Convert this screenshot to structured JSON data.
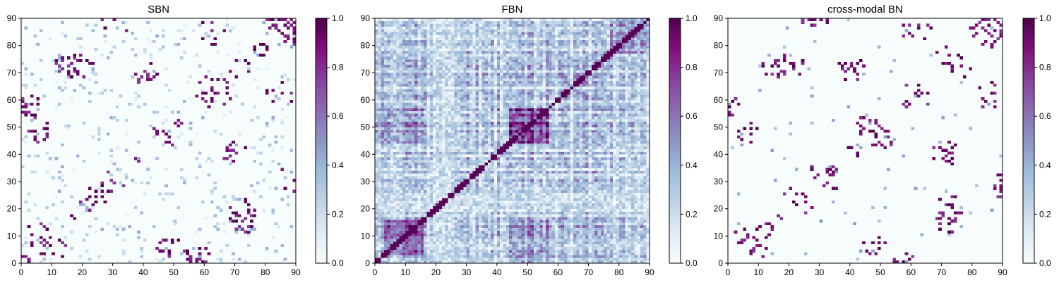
{
  "colormap": {
    "name": "BuPu",
    "stops": [
      "#f7fcfd",
      "#e0ecf4",
      "#bfd3e6",
      "#9ebcda",
      "#8c96c6",
      "#8c6bb1",
      "#88419d",
      "#810f7c",
      "#4d004b"
    ]
  },
  "colorbar_ticks": [
    "0.0",
    "0.2",
    "0.4",
    "0.6",
    "0.8",
    "1.0"
  ],
  "chart_data": [
    {
      "type": "heatmap",
      "title": "SBN",
      "xlim": [
        0,
        90
      ],
      "ylim": [
        0,
        90
      ],
      "xticks": [
        "0",
        "10",
        "20",
        "30",
        "40",
        "50",
        "60",
        "70",
        "80",
        "90"
      ],
      "yticks": [
        "0",
        "10",
        "20",
        "30",
        "40",
        "50",
        "60",
        "70",
        "80",
        "90"
      ],
      "vmin": 0.0,
      "vmax": 1.0,
      "matrix_size": [
        90,
        90
      ],
      "description": "sparse structural brain network connectivity; mostly near 0 with scattered strong entries near diagonal bands"
    },
    {
      "type": "heatmap",
      "title": "FBN",
      "xlim": [
        0,
        90
      ],
      "ylim": [
        0,
        90
      ],
      "xticks": [
        "0",
        "10",
        "20",
        "30",
        "40",
        "50",
        "60",
        "70",
        "80",
        "90"
      ],
      "yticks": [
        "0",
        "10",
        "20",
        "30",
        "40",
        "50",
        "60",
        "70",
        "80",
        "90"
      ],
      "vmin": 0.0,
      "vmax": 1.0,
      "matrix_size": [
        90,
        90
      ],
      "description": "dense functional brain network; widespread moderate values with strong blocks around 5-15 and 45-55"
    },
    {
      "type": "heatmap",
      "title": "cross-modal BN",
      "xlim": [
        0,
        90
      ],
      "ylim": [
        0,
        90
      ],
      "xticks": [
        "0",
        "10",
        "20",
        "30",
        "40",
        "50",
        "60",
        "70",
        "80",
        "90"
      ],
      "yticks": [
        "0",
        "10",
        "20",
        "30",
        "40",
        "50",
        "60",
        "70",
        "80",
        "90"
      ],
      "vmin": 0.0,
      "vmax": 1.0,
      "matrix_size": [
        90,
        90
      ],
      "description": "sparse cross-modal network; mostly 0 with scattered strong (near 1) entries"
    }
  ]
}
